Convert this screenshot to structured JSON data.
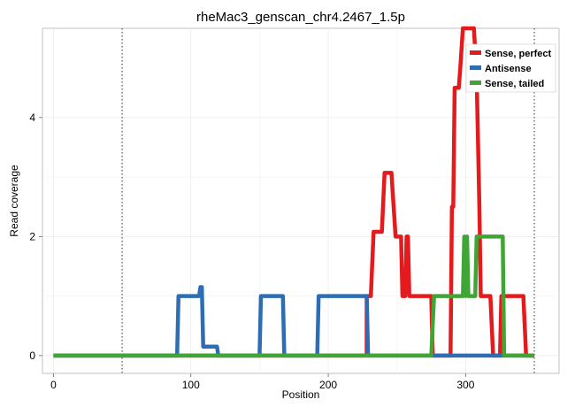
{
  "chart_data": {
    "type": "line",
    "title": "rheMac3_genscan_chr4.2467_1.5p",
    "xlabel": "Position",
    "ylabel": "Read coverage",
    "xlim": [
      -8,
      368
    ],
    "ylim": [
      -0.3,
      5.5
    ],
    "x_ticks": [
      0,
      100,
      200,
      300
    ],
    "y_ticks": [
      0,
      2,
      4
    ],
    "grid": true,
    "reference_lines": [
      50,
      350
    ],
    "legend_position": "top-right",
    "series": [
      {
        "name": "Sense, perfect",
        "color": "#E41A1C",
        "points": [
          [
            0,
            0
          ],
          [
            228,
            0
          ],
          [
            228,
            1
          ],
          [
            231,
            1
          ],
          [
            233,
            2.08
          ],
          [
            239,
            2.08
          ],
          [
            241,
            3.07
          ],
          [
            246,
            3.07
          ],
          [
            249,
            2.0
          ],
          [
            253,
            2.0
          ],
          [
            254,
            1.0
          ],
          [
            256,
            1.0
          ],
          [
            257,
            2.0
          ],
          [
            258,
            2.0
          ],
          [
            259,
            1.0
          ],
          [
            275,
            1.0
          ],
          [
            276,
            0
          ],
          [
            289,
            0
          ],
          [
            290,
            2.5
          ],
          [
            291,
            2.5
          ],
          [
            292,
            4.5
          ],
          [
            295,
            4.5
          ],
          [
            296,
            4.8
          ],
          [
            298,
            5.5
          ],
          [
            306,
            5.5
          ],
          [
            308,
            4.7
          ],
          [
            310,
            2.5
          ],
          [
            311,
            1.0
          ],
          [
            318,
            1.0
          ],
          [
            320,
            0
          ],
          [
            325,
            0
          ],
          [
            326,
            1.0
          ],
          [
            342,
            1.0
          ],
          [
            344,
            0
          ],
          [
            350,
            0
          ]
        ]
      },
      {
        "name": "Antisense",
        "color": "#2E6DB4",
        "points": [
          [
            0,
            0
          ],
          [
            90,
            0
          ],
          [
            91,
            1.0
          ],
          [
            106,
            1.0
          ],
          [
            107,
            1.15
          ],
          [
            108,
            1.15
          ],
          [
            109,
            0.15
          ],
          [
            119,
            0.15
          ],
          [
            120,
            0
          ],
          [
            150,
            0
          ],
          [
            151,
            1.0
          ],
          [
            167,
            1.0
          ],
          [
            168,
            0
          ],
          [
            192,
            0
          ],
          [
            193,
            1.0
          ],
          [
            228,
            1.0
          ],
          [
            229,
            0
          ],
          [
            350,
            0
          ]
        ]
      },
      {
        "name": "Sense, tailed",
        "color": "#3FA535",
        "points": [
          [
            0,
            0
          ],
          [
            275,
            0
          ],
          [
            277,
            1.0
          ],
          [
            298,
            1.0
          ],
          [
            299,
            2.0
          ],
          [
            300,
            1.0
          ],
          [
            301,
            2.0
          ],
          [
            302,
            1.0
          ],
          [
            307,
            1.0
          ],
          [
            308,
            2.0
          ],
          [
            327,
            2.0
          ],
          [
            328,
            0
          ],
          [
            350,
            0
          ]
        ]
      }
    ]
  }
}
